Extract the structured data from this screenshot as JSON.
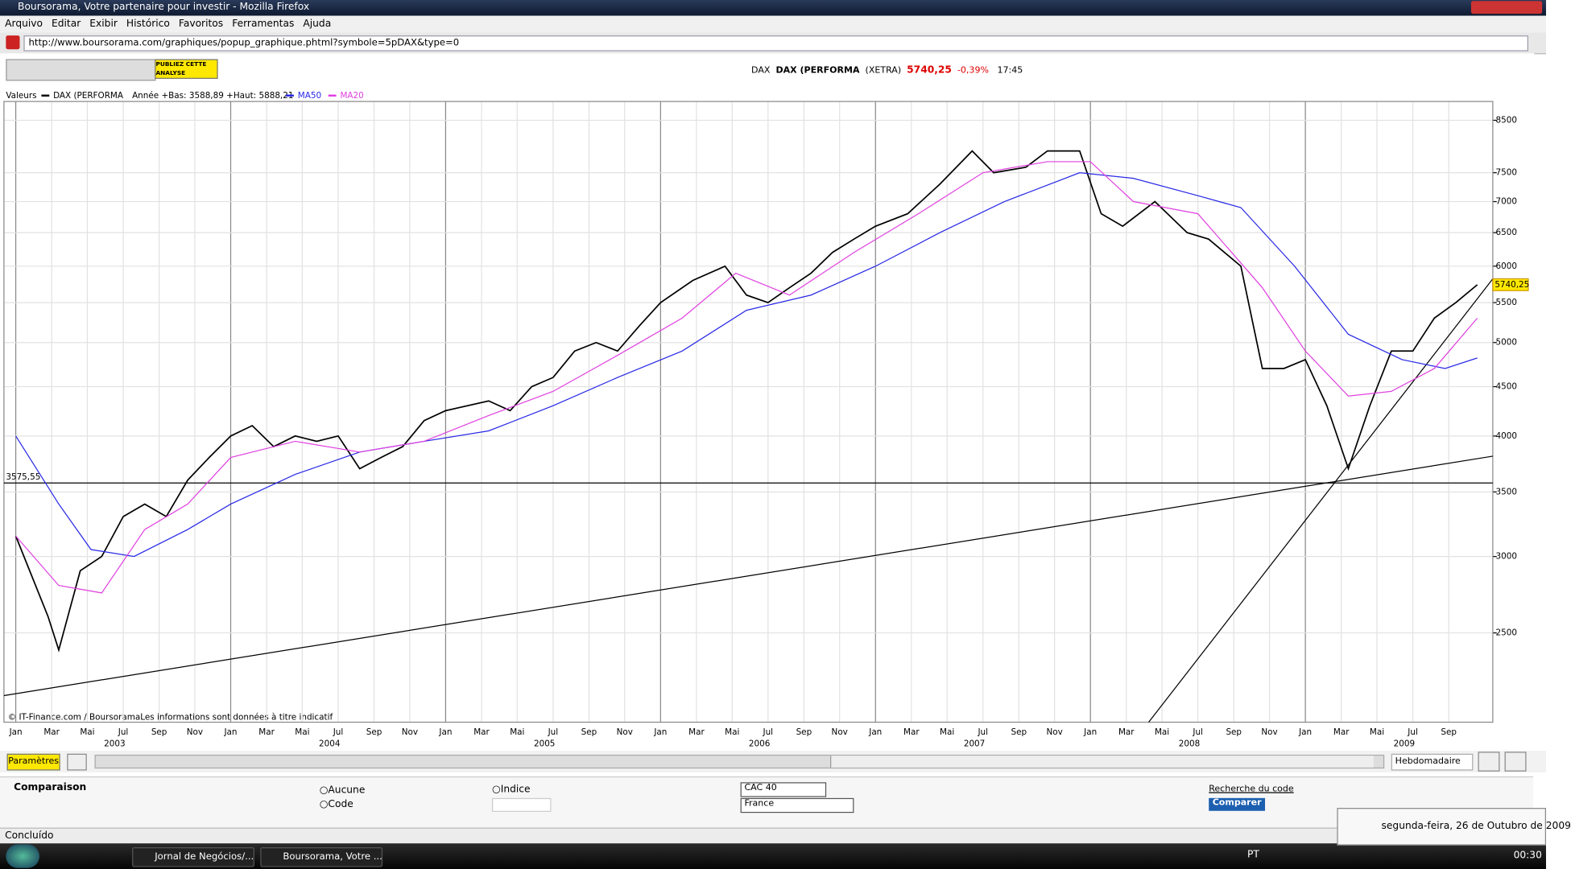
{
  "window": {
    "title": "Boursorama, Votre partenaire pour investir - Mozilla Firefox"
  },
  "menu": [
    "Arquivo",
    "Editar",
    "Exibir",
    "Histórico",
    "Favoritos",
    "Ferramentas",
    "Ajuda"
  ],
  "url": "http://www.boursorama.com/graphiques/popup_graphique.phtml?symbole=5pDAX&type=0",
  "toolbar": {
    "publish": "PUBLIEZ CETTE ANALYSE"
  },
  "quote": {
    "code": "DAX",
    "name": "DAX (PERFORMA",
    "market": "(XETRA)",
    "price": "5740,25",
    "change": "-0,39%",
    "time": "17:45"
  },
  "chart_data": {
    "type": "line",
    "legend_label": "Valeurs",
    "range_text": "Année +Bas: 3588,89 +Haut: 5888,21",
    "source": "© IT-Finance.com / BoursoramaLes informations sont données à titre indicatif",
    "log_scale": true,
    "grid": true,
    "ylim": [
      2020,
      8890
    ],
    "yticks": [
      2500,
      3000,
      3500,
      4000,
      4500,
      5000,
      5500,
      6000,
      6500,
      7000,
      7500,
      8500
    ],
    "xlim": [
      2002.945,
      2009.872
    ],
    "xticks": [
      {
        "value": 2003.0,
        "label": "Jan"
      },
      {
        "value": 2003.167,
        "label": "Mar"
      },
      {
        "value": 2003.333,
        "label": "Mai"
      },
      {
        "value": 2003.5,
        "label": "Jul"
      },
      {
        "value": 2003.667,
        "label": "Sep"
      },
      {
        "value": 2003.833,
        "label": "Nov"
      },
      {
        "value": 2004.0,
        "label": "Jan"
      },
      {
        "value": 2004.167,
        "label": "Mar"
      },
      {
        "value": 2004.333,
        "label": "Mai"
      },
      {
        "value": 2004.5,
        "label": "Jul"
      },
      {
        "value": 2004.667,
        "label": "Sep"
      },
      {
        "value": 2004.833,
        "label": "Nov"
      },
      {
        "value": 2005.0,
        "label": "Jan"
      },
      {
        "value": 2005.167,
        "label": "Mar"
      },
      {
        "value": 2005.333,
        "label": "Mai"
      },
      {
        "value": 2005.5,
        "label": "Jul"
      },
      {
        "value": 2005.667,
        "label": "Sep"
      },
      {
        "value": 2005.833,
        "label": "Nov"
      },
      {
        "value": 2006.0,
        "label": "Jan"
      },
      {
        "value": 2006.167,
        "label": "Mar"
      },
      {
        "value": 2006.333,
        "label": "Mai"
      },
      {
        "value": 2006.5,
        "label": "Jul"
      },
      {
        "value": 2006.667,
        "label": "Sep"
      },
      {
        "value": 2006.833,
        "label": "Nov"
      },
      {
        "value": 2007.0,
        "label": "Jan"
      },
      {
        "value": 2007.167,
        "label": "Mar"
      },
      {
        "value": 2007.333,
        "label": "Mai"
      },
      {
        "value": 2007.5,
        "label": "Jul"
      },
      {
        "value": 2007.667,
        "label": "Sep"
      },
      {
        "value": 2007.833,
        "label": "Nov"
      },
      {
        "value": 2008.0,
        "label": "Jan"
      },
      {
        "value": 2008.167,
        "label": "Mar"
      },
      {
        "value": 2008.333,
        "label": "Mai"
      },
      {
        "value": 2008.5,
        "label": "Jul"
      },
      {
        "value": 2008.667,
        "label": "Sep"
      },
      {
        "value": 2008.833,
        "label": "Nov"
      },
      {
        "value": 2009.0,
        "label": "Jan"
      },
      {
        "value": 2009.167,
        "label": "Mar"
      },
      {
        "value": 2009.333,
        "label": "Mai"
      },
      {
        "value": 2009.5,
        "label": "Jul"
      },
      {
        "value": 2009.667,
        "label": "Sep"
      }
    ],
    "year_labels": [
      {
        "value": 2003.46,
        "label": "2003"
      },
      {
        "value": 2004.46,
        "label": "2004"
      },
      {
        "value": 2005.46,
        "label": "2005"
      },
      {
        "value": 2006.46,
        "label": "2006"
      },
      {
        "value": 2007.46,
        "label": "2007"
      },
      {
        "value": 2008.46,
        "label": "2008"
      },
      {
        "value": 2009.46,
        "label": "2009"
      }
    ],
    "reference_line": {
      "value": 3575.55,
      "label": "3575,55"
    },
    "last_price": {
      "value": 5740.25,
      "label": "5740,25"
    },
    "series": [
      {
        "name": "DAX (PERFORMA",
        "color": "#000000",
        "x": [
          2003.0,
          2003.15,
          2003.2,
          2003.3,
          2003.4,
          2003.5,
          2003.6,
          2003.7,
          2003.8,
          2003.9,
          2004.0,
          2004.1,
          2004.2,
          2004.3,
          2004.4,
          2004.5,
          2004.6,
          2004.7,
          2004.8,
          2004.9,
          2005.0,
          2005.2,
          2005.3,
          2005.4,
          2005.5,
          2005.6,
          2005.7,
          2005.8,
          2005.9,
          2006.0,
          2006.15,
          2006.3,
          2006.4,
          2006.5,
          2006.6,
          2006.7,
          2006.8,
          2006.9,
          2007.0,
          2007.15,
          2007.3,
          2007.45,
          2007.55,
          2007.7,
          2007.8,
          2007.95,
          2008.05,
          2008.15,
          2008.3,
          2008.45,
          2008.55,
          2008.7,
          2008.8,
          2008.9,
          2009.0,
          2009.1,
          2009.2,
          2009.3,
          2009.4,
          2009.5,
          2009.6,
          2009.7,
          2009.8
        ],
        "values": [
          3150,
          2600,
          2400,
          2900,
          3000,
          3300,
          3400,
          3300,
          3600,
          3800,
          4000,
          4100,
          3900,
          4000,
          3950,
          4000,
          3700,
          3800,
          3900,
          4150,
          4250,
          4350,
          4250,
          4500,
          4600,
          4900,
          5000,
          4900,
          5200,
          5500,
          5800,
          6000,
          5600,
          5500,
          5700,
          5900,
          6200,
          6400,
          6600,
          6800,
          7300,
          7900,
          7500,
          7600,
          7900,
          7900,
          6800,
          6600,
          7000,
          6500,
          6400,
          6000,
          4700,
          4700,
          4800,
          4300,
          3700,
          4300,
          4900,
          4900,
          5300,
          5500,
          5740
        ]
      },
      {
        "name": "MA50",
        "color": "#2828e6",
        "x": [
          2003.0,
          2003.2,
          2003.35,
          2003.55,
          2003.8,
          2004.0,
          2004.3,
          2004.6,
          2004.9,
          2005.2,
          2005.5,
          2005.8,
          2006.1,
          2006.4,
          2006.7,
          2007.0,
          2007.3,
          2007.6,
          2007.95,
          2008.2,
          2008.5,
          2008.7,
          2008.95,
          2009.2,
          2009.45,
          2009.65,
          2009.8
        ],
        "values": [
          4000,
          3400,
          3050,
          3000,
          3200,
          3400,
          3650,
          3850,
          3950,
          4050,
          4300,
          4600,
          4900,
          5400,
          5600,
          6000,
          6500,
          7000,
          7500,
          7400,
          7100,
          6900,
          6000,
          5100,
          4800,
          4700,
          4820
        ]
      },
      {
        "name": "MA20",
        "color": "#e040e0",
        "x": [
          2003.0,
          2003.2,
          2003.4,
          2003.6,
          2003.8,
          2004.0,
          2004.3,
          2004.6,
          2004.9,
          2005.2,
          2005.5,
          2005.8,
          2006.1,
          2006.35,
          2006.6,
          2006.9,
          2007.2,
          2007.5,
          2007.8,
          2008.0,
          2008.2,
          2008.5,
          2008.8,
          2009.0,
          2009.2,
          2009.4,
          2009.6,
          2009.8
        ],
        "values": [
          3150,
          2800,
          2750,
          3200,
          3400,
          3800,
          3950,
          3850,
          3950,
          4200,
          4450,
          4850,
          5300,
          5900,
          5600,
          6200,
          6800,
          7500,
          7700,
          7700,
          7000,
          6800,
          5700,
          4900,
          4400,
          4450,
          4700,
          5300
        ]
      }
    ]
  },
  "controls": {
    "settings": "Paramètres",
    "period": "Hebdomadaire"
  },
  "comparison": {
    "title": "Comparaison",
    "none": "Aucune",
    "index": "Indice",
    "code": "Code",
    "index_select": "CAC 40",
    "country_select": "France",
    "search": "Recherche du code",
    "compare": "Comparer"
  },
  "status": "Concluído",
  "taskbar": {
    "tasks": [
      "Jornal de Negócios/...",
      "Boursorama, Votre ..."
    ],
    "language": "PT",
    "clock": "00:30"
  },
  "notification": "segunda-feira, 26 de Outubro de 2009"
}
